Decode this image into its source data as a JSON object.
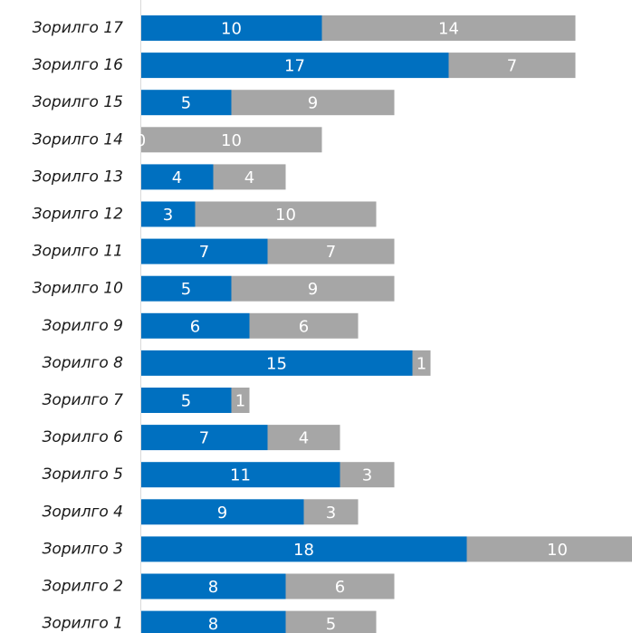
{
  "chart_data": {
    "type": "bar",
    "orientation": "horizontal",
    "stacked": true,
    "categories": [
      "Зорилго 17",
      "Зорилго 16",
      "Зорилго 15",
      "Зорилго 14",
      "Зорилго 13",
      "Зорилго 12",
      "Зорилго 11",
      "Зорилго 10",
      "Зорилго 9",
      "Зорилго 8",
      "Зорилго 7",
      "Зорилго 6",
      "Зорилго 5",
      "Зорилго 4",
      "Зорилго 3",
      "Зорилго 2",
      "Зорилго 1"
    ],
    "series": [
      {
        "color": "#0070c0",
        "values": [
          10,
          17,
          5,
          0,
          4,
          3,
          7,
          5,
          6,
          15,
          5,
          7,
          11,
          9,
          18,
          8,
          8
        ]
      },
      {
        "color": "#a6a6a6",
        "values": [
          14,
          7,
          9,
          10,
          4,
          10,
          7,
          9,
          6,
          1,
          1,
          4,
          3,
          3,
          10,
          6,
          5
        ]
      }
    ],
    "xlim": [
      0,
      27
    ],
    "grid": false,
    "legend": "none"
  }
}
